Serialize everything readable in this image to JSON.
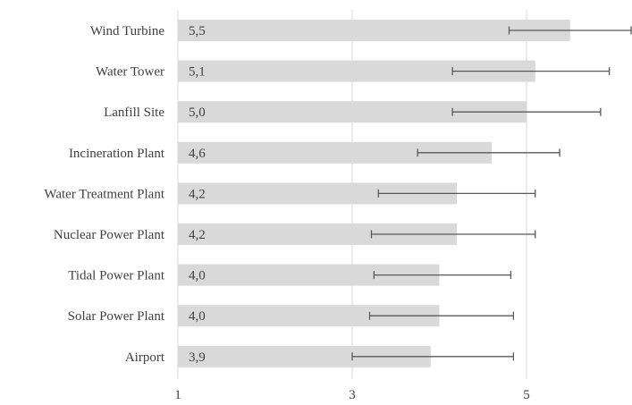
{
  "chart_data": {
    "type": "bar",
    "orientation": "horizontal",
    "categories": [
      "Wind Turbine",
      "Water Tower",
      "Lanfill Site",
      "Incineration Plant",
      "Water Treatment Plant",
      "Nuclear Power Plant",
      "Tidal Power Plant",
      "Solar Power Plant",
      "Airport"
    ],
    "values": [
      5.5,
      5.1,
      5.0,
      4.6,
      4.2,
      4.2,
      4.0,
      4.0,
      3.9
    ],
    "value_labels": [
      "5,5",
      "5,1",
      "5,0",
      "4,6",
      "4,2",
      "4,2",
      "4,0",
      "4,0",
      "3,9"
    ],
    "error_low": [
      4.8,
      4.15,
      4.15,
      3.75,
      3.3,
      3.22,
      3.25,
      3.2,
      3.0
    ],
    "error_high": [
      6.2,
      5.95,
      5.85,
      5.38,
      5.1,
      5.1,
      4.82,
      4.85,
      4.85
    ],
    "xlim": [
      1,
      6.2
    ],
    "xticks": [
      1,
      3,
      5
    ],
    "tick_labels": [
      "1",
      "3",
      "5"
    ],
    "grid": true,
    "bar_color": "#d9d9d9",
    "error_color": "#595959",
    "grid_color": "#d9d9d9"
  }
}
